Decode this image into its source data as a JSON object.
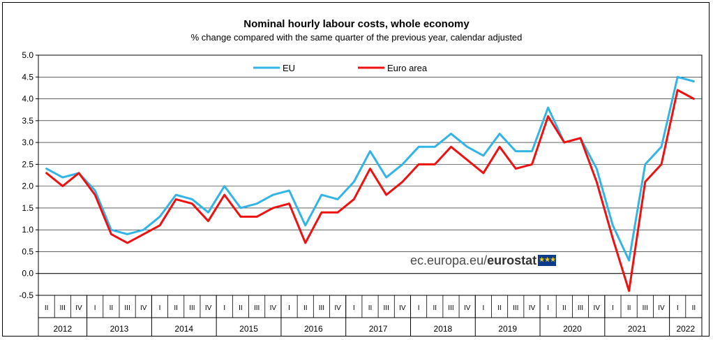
{
  "chart_data": {
    "type": "line",
    "title": "Nominal hourly labour costs, whole economy",
    "subtitle": "% change compared with the same quarter of the previous  year, calendar adjusted",
    "xlabel": "",
    "ylabel": "",
    "ylim": [
      -0.5,
      5.0
    ],
    "yticks": [
      "5.0",
      "4.5",
      "4.0",
      "3.5",
      "3.0",
      "2.5",
      "2.0",
      "1.5",
      "1.0",
      "0.5",
      "0.0",
      "-0.5"
    ],
    "quarters": [
      "II",
      "III",
      "IV",
      "I",
      "II",
      "III",
      "IV",
      "I",
      "II",
      "III",
      "IV",
      "I",
      "II",
      "III",
      "IV",
      "I",
      "II",
      "III",
      "IV",
      "I",
      "II",
      "III",
      "IV",
      "I",
      "II",
      "III",
      "IV",
      "I",
      "II",
      "III",
      "IV",
      "I",
      "II",
      "III",
      "IV",
      "I",
      "II",
      "III",
      "IV",
      "I",
      "II"
    ],
    "years": [
      {
        "label": "2012",
        "count": 3
      },
      {
        "label": "2013",
        "count": 4
      },
      {
        "label": "2014",
        "count": 4
      },
      {
        "label": "2015",
        "count": 4
      },
      {
        "label": "2016",
        "count": 4
      },
      {
        "label": "2017",
        "count": 4
      },
      {
        "label": "2018",
        "count": 4
      },
      {
        "label": "2019",
        "count": 4
      },
      {
        "label": "2020",
        "count": 4
      },
      {
        "label": "2021",
        "count": 4
      },
      {
        "label": "2022",
        "count": 2
      }
    ],
    "series": [
      {
        "name": "EU",
        "color": "#33b4e6",
        "values": [
          2.4,
          2.2,
          2.3,
          1.9,
          1.0,
          0.9,
          1.0,
          1.3,
          1.8,
          1.7,
          1.4,
          2.0,
          1.5,
          1.6,
          1.8,
          1.9,
          1.1,
          1.8,
          1.7,
          2.1,
          2.8,
          2.2,
          2.5,
          2.9,
          2.9,
          3.2,
          2.9,
          2.7,
          3.2,
          2.8,
          2.8,
          3.8,
          3.0,
          3.1,
          2.4,
          1.1,
          0.3,
          2.5,
          2.9,
          4.5,
          4.4
        ]
      },
      {
        "name": "Euro area",
        "color": "#ee1111",
        "values": [
          2.3,
          2.0,
          2.3,
          1.8,
          0.9,
          0.7,
          0.9,
          1.1,
          1.7,
          1.6,
          1.2,
          1.8,
          1.3,
          1.3,
          1.5,
          1.6,
          0.7,
          1.4,
          1.4,
          1.7,
          2.4,
          1.8,
          2.1,
          2.5,
          2.5,
          2.9,
          2.6,
          2.3,
          2.9,
          2.4,
          2.5,
          3.6,
          3.0,
          3.1,
          2.1,
          0.8,
          -0.4,
          2.1,
          2.5,
          4.2,
          4.0
        ]
      }
    ],
    "legend": {
      "placement": "top-center"
    }
  },
  "watermark": {
    "prefix": "ec.europa.eu/",
    "brand": "eurostat"
  }
}
